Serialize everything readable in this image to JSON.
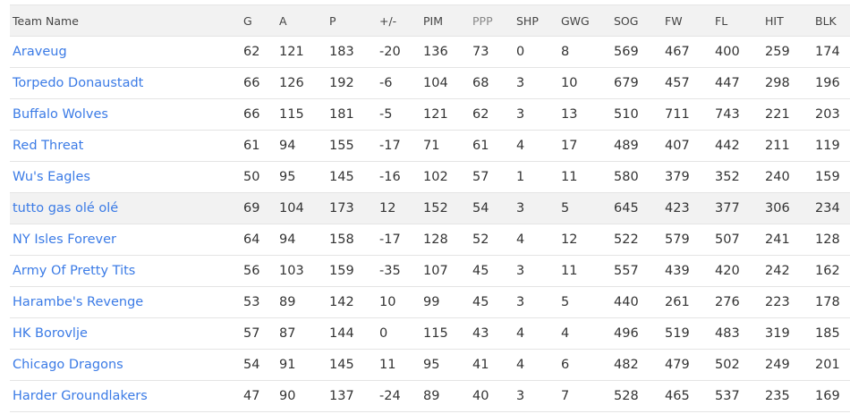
{
  "columns": [
    "Team Name",
    "G",
    "A",
    "P",
    "+/-",
    "PIM",
    "PPP",
    "SHP",
    "GWG",
    "SOG",
    "FW",
    "FL",
    "HIT",
    "BLK"
  ],
  "sorted_column": "PPP",
  "highlighted_team": "tutto gas olé olé",
  "colors": {
    "link": "#3b7be6",
    "header_bg": "#f2f2f2",
    "highlight_bg": "#f2f2f2"
  },
  "rows": [
    [
      "Araveug",
      "62",
      "121",
      "183",
      "-20",
      "136",
      "73",
      "0",
      "8",
      "569",
      "467",
      "400",
      "259",
      "174"
    ],
    [
      "Torpedo Donaustadt",
      "66",
      "126",
      "192",
      "-6",
      "104",
      "68",
      "3",
      "10",
      "679",
      "457",
      "447",
      "298",
      "196"
    ],
    [
      "Buffalo Wolves",
      "66",
      "115",
      "181",
      "-5",
      "121",
      "62",
      "3",
      "13",
      "510",
      "711",
      "743",
      "221",
      "203"
    ],
    [
      "Red Threat",
      "61",
      "94",
      "155",
      "-17",
      "71",
      "61",
      "4",
      "17",
      "489",
      "407",
      "442",
      "211",
      "119"
    ],
    [
      "Wu's Eagles",
      "50",
      "95",
      "145",
      "-16",
      "102",
      "57",
      "1",
      "11",
      "580",
      "379",
      "352",
      "240",
      "159"
    ],
    [
      "tutto gas olé olé",
      "69",
      "104",
      "173",
      "12",
      "152",
      "54",
      "3",
      "5",
      "645",
      "423",
      "377",
      "306",
      "234"
    ],
    [
      "NY Isles Forever",
      "64",
      "94",
      "158",
      "-17",
      "128",
      "52",
      "4",
      "12",
      "522",
      "579",
      "507",
      "241",
      "128"
    ],
    [
      "Army Of Pretty Tits",
      "56",
      "103",
      "159",
      "-35",
      "107",
      "45",
      "3",
      "11",
      "557",
      "439",
      "420",
      "242",
      "162"
    ],
    [
      "Harambe's Revenge",
      "53",
      "89",
      "142",
      "10",
      "99",
      "45",
      "3",
      "5",
      "440",
      "261",
      "276",
      "223",
      "178"
    ],
    [
      "HK Borovlje",
      "57",
      "87",
      "144",
      "0",
      "115",
      "43",
      "4",
      "4",
      "496",
      "519",
      "483",
      "319",
      "185"
    ],
    [
      "Chicago Dragons",
      "54",
      "91",
      "145",
      "11",
      "95",
      "41",
      "4",
      "6",
      "482",
      "479",
      "502",
      "249",
      "201"
    ],
    [
      "Harder Groundlakers",
      "47",
      "90",
      "137",
      "-24",
      "89",
      "40",
      "3",
      "7",
      "528",
      "465",
      "537",
      "235",
      "169"
    ]
  ]
}
